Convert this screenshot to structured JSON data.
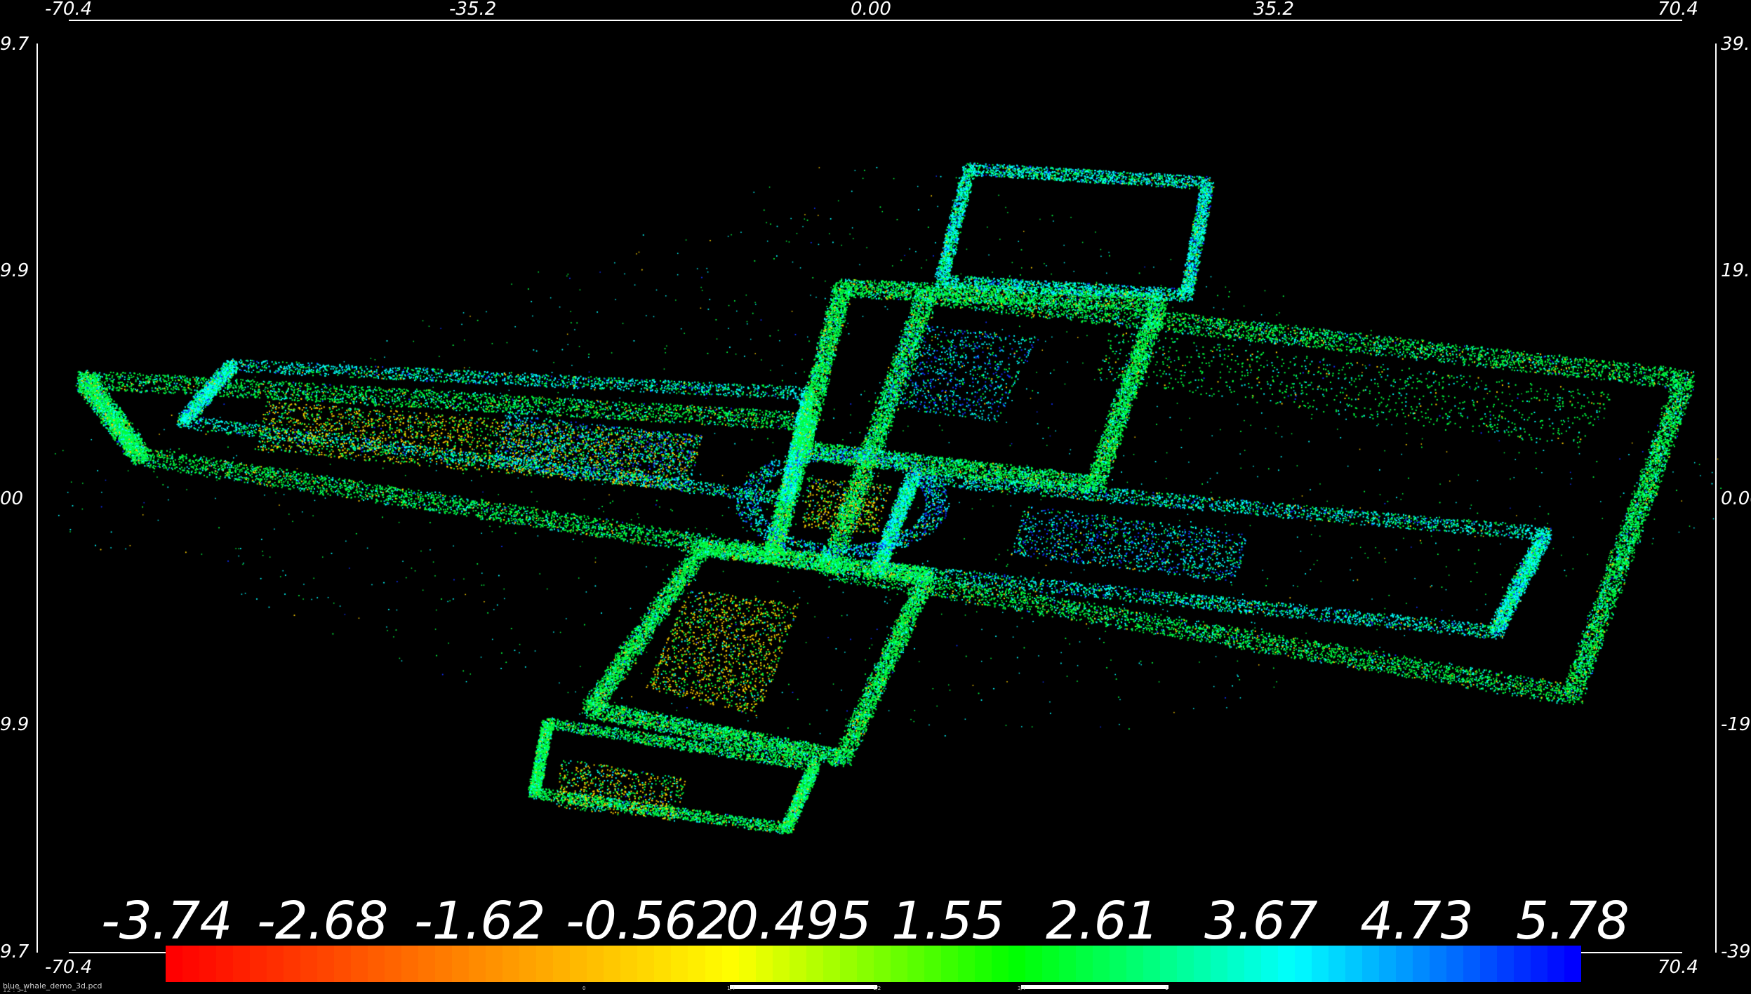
{
  "viewer": {
    "file_name": "blue_whale_demo_3d.pcd",
    "corner_readout": "12 : 5-1"
  },
  "axes": {
    "top_ticks": [
      "-70.4",
      "-35.2",
      "0.00",
      "35.2",
      "70.4"
    ],
    "bottom_ticks": [
      "-70.4",
      "70.4"
    ],
    "left_ticks": [
      "9.7",
      "9.9",
      "00",
      "9.9",
      "9.7"
    ],
    "right_ticks": [
      "39.",
      "19.",
      "0.00",
      "-19.",
      "-39"
    ]
  },
  "colorbar": {
    "labels": [
      "-3.74",
      "-2.68",
      "-1.62",
      "-0.562",
      "0.495",
      "1.55",
      "2.61",
      "3.67",
      "4.73",
      "5.78"
    ],
    "range": [
      -3.74,
      5.78
    ],
    "colors": [
      "#ff0000",
      "#ff8000",
      "#ffff00",
      "#00ff00",
      "#00ffff",
      "#0000ff"
    ],
    "mini_labels": [
      "0",
      "1/4",
      "1/2",
      "3/4",
      "1"
    ]
  },
  "cloud_colors": {
    "background": "#000000",
    "low": "#ffd000",
    "mid": "#00ff40",
    "high": "#00ffff",
    "top": "#1030ff"
  }
}
